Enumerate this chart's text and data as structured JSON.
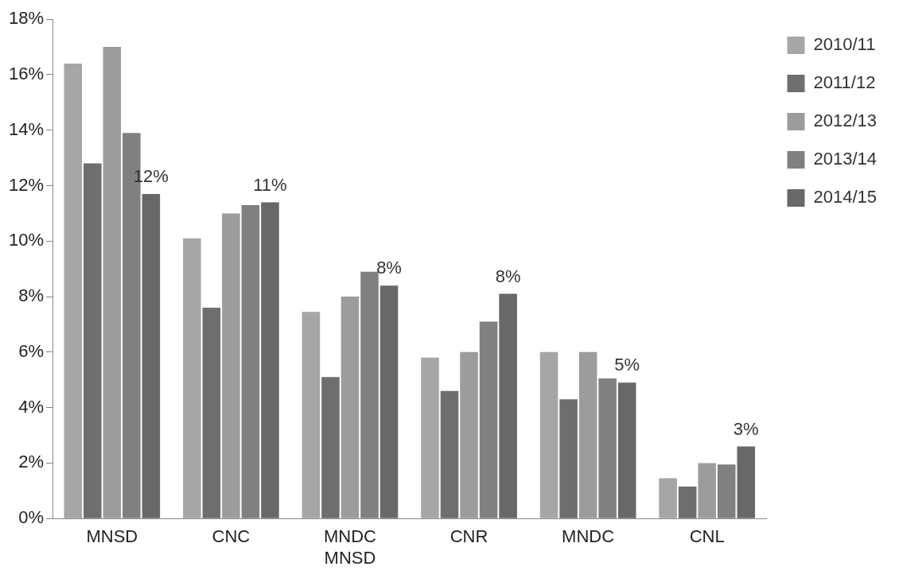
{
  "chart_data": {
    "type": "bar",
    "categories": [
      "MNSD",
      "CNC",
      "MNDC\nMNSD",
      "CNR",
      "MNDC",
      "CNL"
    ],
    "series": [
      {
        "name": "2010/11",
        "color": "#a6a6a6",
        "values": [
          16.4,
          10.1,
          7.45,
          5.8,
          6.0,
          1.45
        ]
      },
      {
        "name": "2011/12",
        "color": "#6e6e6e",
        "values": [
          12.8,
          7.6,
          5.1,
          4.6,
          4.3,
          1.15
        ]
      },
      {
        "name": "2012/13",
        "color": "#9c9c9c",
        "values": [
          17.0,
          11.0,
          8.0,
          6.0,
          6.0,
          2.0
        ]
      },
      {
        "name": "2013/14",
        "color": "#808080",
        "values": [
          13.9,
          11.3,
          8.9,
          7.1,
          5.05,
          1.95
        ]
      },
      {
        "name": "2014/15",
        "color": "#686868",
        "values": [
          11.7,
          11.4,
          8.4,
          8.1,
          4.9,
          2.6
        ],
        "value_labels": [
          "12%",
          "11%",
          "8%",
          "8%",
          "5%",
          "3%"
        ]
      }
    ],
    "ylim": [
      0,
      18
    ],
    "yticks": [
      {
        "value": 0,
        "label": "0%"
      },
      {
        "value": 2,
        "label": "2%"
      },
      {
        "value": 4,
        "label": "4%"
      },
      {
        "value": 6,
        "label": "6%"
      },
      {
        "value": 8,
        "label": "8%"
      },
      {
        "value": 10,
        "label": "10%"
      },
      {
        "value": 12,
        "label": "12%"
      },
      {
        "value": 14,
        "label": "14%"
      },
      {
        "value": 16,
        "label": "16%"
      },
      {
        "value": 18,
        "label": "18%"
      }
    ],
    "grid": false,
    "legend": "top right"
  }
}
